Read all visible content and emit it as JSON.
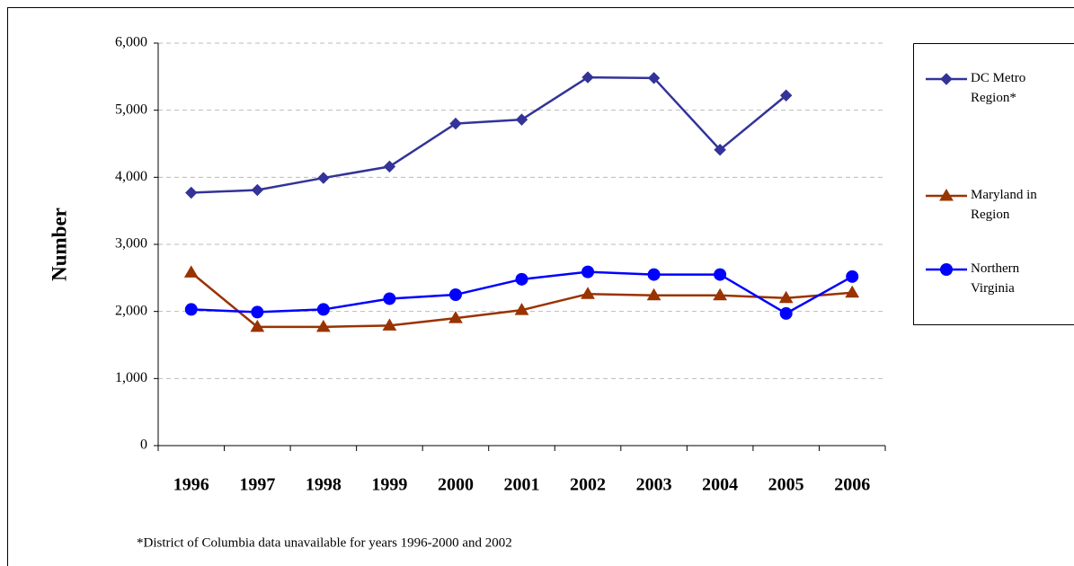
{
  "chart_data": {
    "type": "line",
    "y_label": "Number",
    "footnote": "*District of Columbia data unavailable for years 1996-2000 and 2002",
    "categories": [
      "1996",
      "1997",
      "1998",
      "1999",
      "2000",
      "2001",
      "2002",
      "2003",
      "2004",
      "2005",
      "2006"
    ],
    "series": [
      {
        "name": "DC Metro Region*",
        "color": "#333399",
        "marker": "diamond",
        "values": [
          3770,
          3810,
          3990,
          4160,
          4800,
          4860,
          5490,
          5480,
          4410,
          5220,
          null
        ]
      },
      {
        "name": "Maryland in Region",
        "color": "#993300",
        "marker": "triangle",
        "values": [
          2580,
          1770,
          1770,
          1790,
          1900,
          2020,
          2260,
          2240,
          2240,
          2200,
          2280
        ]
      },
      {
        "name": "Northern Virginia",
        "color": "#0000ff",
        "marker": "circle",
        "values": [
          2030,
          1990,
          2030,
          2190,
          2250,
          2480,
          2590,
          2550,
          2550,
          1970,
          2520
        ]
      }
    ],
    "ylim": [
      0,
      6000
    ],
    "yticks": [
      {
        "value": 0,
        "label": "0"
      },
      {
        "value": 1000,
        "label": "1,000"
      },
      {
        "value": 2000,
        "label": "2,000"
      },
      {
        "value": 3000,
        "label": "3,000"
      },
      {
        "value": 4000,
        "label": "4,000"
      },
      {
        "value": 5000,
        "label": "5,000"
      },
      {
        "value": 6000,
        "label": "6,000"
      }
    ],
    "grid": true,
    "legend": "right"
  }
}
